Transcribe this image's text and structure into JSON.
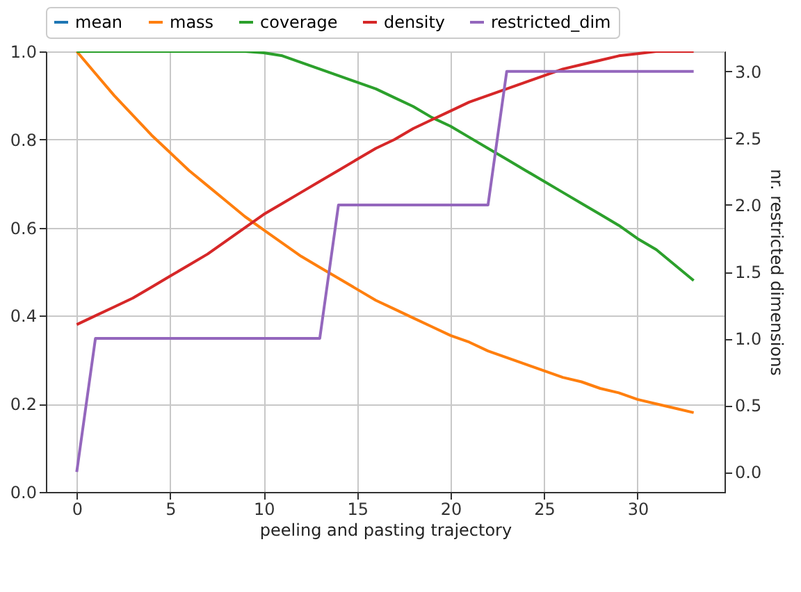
{
  "chart_data": {
    "type": "line",
    "xlabel": "peeling and pasting trajectory",
    "y2label": "nr. restricted dimensions",
    "x": [
      0,
      1,
      2,
      3,
      4,
      5,
      6,
      7,
      8,
      9,
      10,
      11,
      12,
      13,
      14,
      15,
      16,
      17,
      18,
      19,
      20,
      21,
      22,
      23,
      24,
      25,
      26,
      27,
      28,
      29,
      30,
      31,
      32,
      33
    ],
    "series": [
      {
        "name": "mean",
        "color": "#1f77b4",
        "values": [
          null,
          null,
          null,
          null,
          null,
          null,
          null,
          null,
          null,
          null,
          null,
          null,
          null,
          null,
          null,
          null,
          null,
          null,
          null,
          null,
          null,
          null,
          null,
          null,
          null,
          null,
          null,
          null,
          null,
          null,
          null,
          null,
          null,
          null
        ]
      },
      {
        "name": "mass",
        "color": "#ff7f0e",
        "values": [
          1.0,
          0.95,
          0.9,
          0.855,
          0.81,
          0.77,
          0.73,
          0.695,
          0.66,
          0.625,
          0.595,
          0.565,
          0.535,
          0.51,
          0.485,
          0.46,
          0.435,
          0.415,
          0.395,
          0.375,
          0.355,
          0.34,
          0.32,
          0.305,
          0.29,
          0.275,
          0.26,
          0.25,
          0.235,
          0.225,
          0.21,
          0.2,
          0.19,
          0.18
        ]
      },
      {
        "name": "coverage",
        "color": "#2ca02c",
        "values": [
          1,
          1,
          1,
          1,
          1,
          1,
          1,
          1,
          1,
          1,
          0.997,
          0.99,
          0.975,
          0.96,
          0.945,
          0.93,
          0.915,
          0.895,
          0.875,
          0.85,
          0.83,
          0.805,
          0.78,
          0.755,
          0.73,
          0.705,
          0.68,
          0.655,
          0.63,
          0.605,
          0.575,
          0.55,
          0.515,
          0.48
        ]
      },
      {
        "name": "density",
        "color": "#d62728",
        "values": [
          0.38,
          0.4,
          0.42,
          0.44,
          0.465,
          0.49,
          0.515,
          0.54,
          0.57,
          0.6,
          0.63,
          0.655,
          0.68,
          0.705,
          0.73,
          0.755,
          0.78,
          0.8,
          0.825,
          0.845,
          0.865,
          0.885,
          0.9,
          0.915,
          0.93,
          0.945,
          0.96,
          0.97,
          0.98,
          0.99,
          0.995,
          1,
          1,
          1
        ]
      },
      {
        "name": "restricted_dim",
        "color": "#9467bd",
        "axis": "y2",
        "values": [
          0,
          1,
          1,
          1,
          1,
          1,
          1,
          1,
          1,
          1,
          1,
          1,
          1,
          1,
          2,
          2,
          2,
          2,
          2,
          2,
          2,
          2,
          2,
          3,
          3,
          3,
          3,
          3,
          3,
          3,
          3,
          3,
          3,
          3
        ]
      }
    ],
    "xlim": [
      -1.65,
      34.65
    ],
    "xticks": [
      0,
      5,
      10,
      15,
      20,
      25,
      30
    ],
    "ylim": [
      0,
      1
    ],
    "yticks": [
      {
        "value": 0,
        "label": "0.0"
      },
      {
        "value": 0.2,
        "label": "0.2"
      },
      {
        "value": 0.4,
        "label": "0.4"
      },
      {
        "value": 0.6,
        "label": "0.6"
      },
      {
        "value": 0.8,
        "label": "0.8"
      },
      {
        "value": 1,
        "label": "1.0"
      }
    ],
    "y2lim": [
      -0.15,
      3.15
    ],
    "y2ticks": [
      {
        "value": 0,
        "label": "0.0"
      },
      {
        "value": 0.5,
        "label": "0.5"
      },
      {
        "value": 1,
        "label": "1.0"
      },
      {
        "value": 1.5,
        "label": "1.5"
      },
      {
        "value": 2,
        "label": "2.0"
      },
      {
        "value": 2.5,
        "label": "2.5"
      },
      {
        "value": 3,
        "label": "3.0"
      }
    ],
    "grid": true,
    "legend": "top",
    "line_style": "solid"
  }
}
